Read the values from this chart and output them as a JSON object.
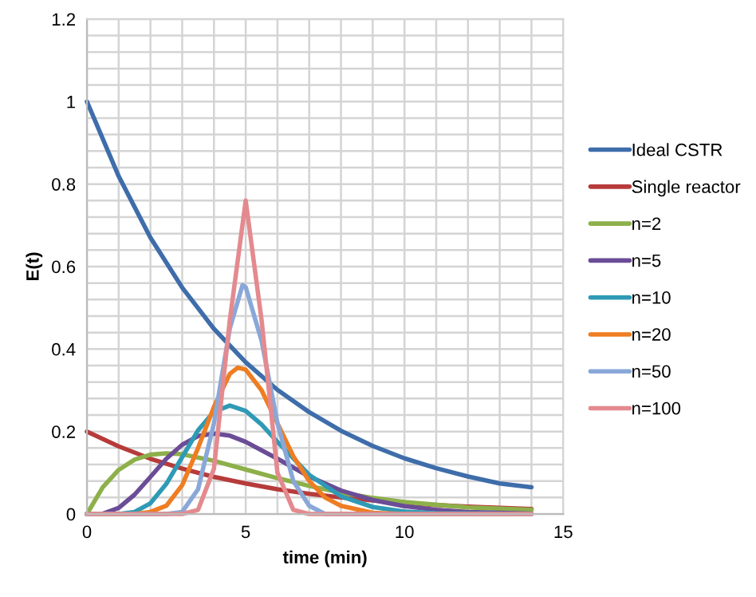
{
  "chart_data": {
    "type": "line",
    "xlabel": "time (min)",
    "ylabel": "E(t)",
    "xlim": [
      0,
      15
    ],
    "ylim": [
      0,
      1.2
    ],
    "xticks": [
      0,
      {
        "value": 1,
        "label": null
      },
      {
        "value": 2,
        "label": null
      },
      {
        "value": 3,
        "label": null
      },
      {
        "value": 4,
        "label": null
      },
      5,
      {
        "value": 6,
        "label": null
      },
      {
        "value": 7,
        "label": null
      },
      {
        "value": 8,
        "label": null
      },
      {
        "value": 9,
        "label": null
      },
      10,
      {
        "value": 11,
        "label": null
      },
      {
        "value": 12,
        "label": null
      },
      {
        "value": 13,
        "label": null
      },
      {
        "value": 14,
        "label": null
      },
      15
    ],
    "yticks": [
      0,
      {
        "value": 0.04,
        "label": null
      },
      {
        "value": 0.08,
        "label": null
      },
      {
        "value": 0.12,
        "label": null
      },
      {
        "value": 0.16,
        "label": null
      },
      0.2,
      {
        "value": 0.24,
        "label": null
      },
      {
        "value": 0.28,
        "label": null
      },
      {
        "value": 0.32,
        "label": null
      },
      {
        "value": 0.36,
        "label": null
      },
      0.4,
      {
        "value": 0.44,
        "label": null
      },
      {
        "value": 0.48,
        "label": null
      },
      {
        "value": 0.52,
        "label": null
      },
      {
        "value": 0.56,
        "label": null
      },
      0.6,
      {
        "value": 0.64,
        "label": null
      },
      {
        "value": 0.68,
        "label": null
      },
      {
        "value": 0.72,
        "label": null
      },
      {
        "value": 0.76,
        "label": null
      },
      0.8,
      {
        "value": 0.84,
        "label": null
      },
      {
        "value": 0.88,
        "label": null
      },
      {
        "value": 0.92,
        "label": null
      },
      {
        "value": 0.96,
        "label": null
      },
      1,
      {
        "value": 1.04,
        "label": null
      },
      {
        "value": 1.08,
        "label": null
      },
      {
        "value": 1.12,
        "label": null
      },
      {
        "value": 1.16,
        "label": null
      },
      1.2
    ],
    "grid": true,
    "legend": "right",
    "marker": "none",
    "line_style": "solid",
    "series": [
      {
        "name": "Ideal CSTR",
        "color": "#3e6daa",
        "x": [
          0,
          1,
          2,
          3,
          4,
          5,
          6,
          7,
          8,
          9,
          10,
          11,
          12,
          13,
          14
        ],
        "values": [
          1,
          0.819,
          0.67,
          0.549,
          0.449,
          0.368,
          0.301,
          0.247,
          0.202,
          0.165,
          0.135,
          0.111,
          0.091,
          0.074,
          0.065
        ]
      },
      {
        "name": "Single reactor",
        "color": "#b73b3b",
        "x": [
          0,
          1,
          2,
          3,
          4,
          5,
          6,
          7,
          8,
          9,
          10,
          11,
          12,
          13,
          14
        ],
        "values": [
          0.2,
          0.164,
          0.134,
          0.11,
          0.09,
          0.074,
          0.06,
          0.049,
          0.04,
          0.033,
          0.027,
          0.022,
          0.018,
          0.015,
          0.012
        ]
      },
      {
        "name": "n=2",
        "color": "#8db04a",
        "x": [
          0,
          0.5,
          1,
          1.5,
          2,
          2.5,
          3,
          4,
          5,
          6,
          7,
          8,
          9,
          10,
          12,
          14
        ],
        "values": [
          0,
          0.065,
          0.107,
          0.132,
          0.144,
          0.147,
          0.145,
          0.129,
          0.108,
          0.087,
          0.068,
          0.052,
          0.039,
          0.029,
          0.016,
          0.01
        ]
      },
      {
        "name": "n=5",
        "color": "#6b4c96",
        "x": [
          0,
          0.5,
          1,
          1.5,
          2,
          2.5,
          3,
          3.5,
          4,
          4.5,
          5,
          6,
          7,
          8,
          9,
          10,
          11,
          12,
          14
        ],
        "values": [
          0,
          0.001,
          0.015,
          0.047,
          0.09,
          0.134,
          0.168,
          0.189,
          0.195,
          0.19,
          0.175,
          0.134,
          0.091,
          0.057,
          0.034,
          0.019,
          0.01,
          0.005,
          0.001
        ]
      },
      {
        "name": "n=10",
        "color": "#2f9ab5",
        "x": [
          0,
          1,
          1.5,
          2,
          2.5,
          3,
          3.5,
          4,
          4.5,
          5,
          5.5,
          6,
          7,
          8,
          9,
          10,
          11,
          14
        ],
        "values": [
          0,
          0,
          0.005,
          0.026,
          0.073,
          0.138,
          0.203,
          0.248,
          0.263,
          0.25,
          0.217,
          0.175,
          0.095,
          0.043,
          0.017,
          0.006,
          0.002,
          0
        ]
      },
      {
        "name": "n=20",
        "color": "#ef7d22",
        "x": [
          0,
          1.5,
          2,
          2.5,
          3,
          3.5,
          4,
          4.5,
          4.75,
          5,
          5.5,
          6,
          6.5,
          7,
          7.5,
          8,
          9,
          10,
          14
        ],
        "values": [
          0,
          0,
          0.005,
          0.02,
          0.07,
          0.16,
          0.26,
          0.34,
          0.355,
          0.35,
          0.3,
          0.22,
          0.14,
          0.08,
          0.04,
          0.02,
          0.003,
          0,
          0
        ]
      },
      {
        "name": "n=50",
        "color": "#89a8d8",
        "x": [
          0,
          2.5,
          3,
          3.5,
          4,
          4.5,
          4.9,
          5,
          5.5,
          6,
          6.5,
          7,
          7.5,
          14
        ],
        "values": [
          0,
          0,
          0.005,
          0.06,
          0.22,
          0.45,
          0.555,
          0.55,
          0.42,
          0.22,
          0.08,
          0.02,
          0,
          0
        ]
      },
      {
        "name": "n=100",
        "color": "#e48a8f",
        "x": [
          0,
          3,
          3.5,
          4,
          4.5,
          5,
          5.5,
          6,
          6.5,
          7,
          14
        ],
        "values": [
          0,
          0,
          0.01,
          0.11,
          0.47,
          0.76,
          0.47,
          0.1,
          0.01,
          0,
          0
        ]
      }
    ]
  }
}
